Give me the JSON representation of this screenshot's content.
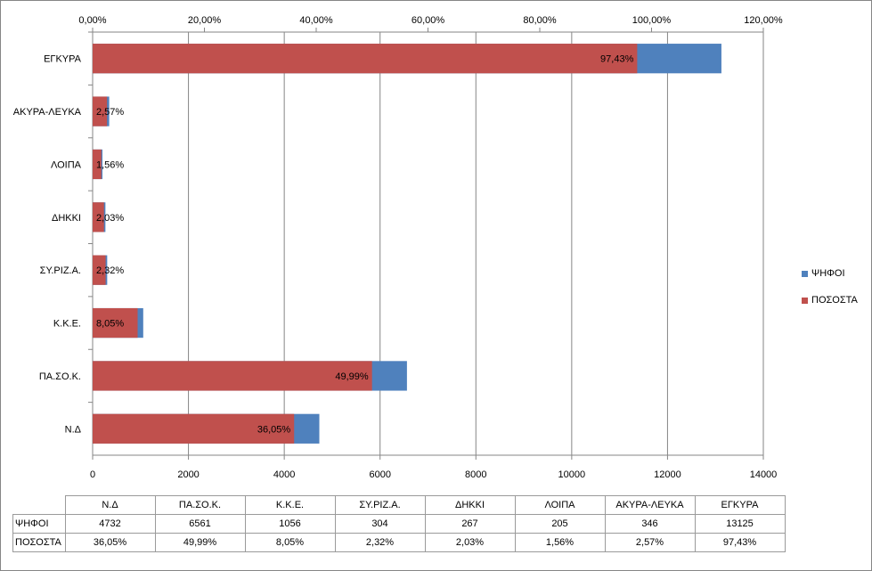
{
  "chart_data": {
    "type": "bar",
    "orientation": "horizontal",
    "stacked": true,
    "categories": [
      "Ν.Δ",
      "ΠΑ.ΣΟ.Κ.",
      "Κ.Κ.Ε.",
      "ΣΥ.ΡΙΖ.Α.",
      "ΔΗΚΚΙ",
      "ΛΟΙΠΑ",
      "ΑΚΥΡΑ-ΛΕΥΚΑ",
      "ΕΓΚΥΡΑ"
    ],
    "series": [
      {
        "name": "ΨΗΦΟΙ",
        "color": "#4F81BD",
        "axis": "bottom",
        "values": [
          4732,
          6561,
          1056,
          304,
          267,
          205,
          346,
          13125
        ],
        "value_labels": [
          "4732",
          "6561",
          "1056",
          "304",
          "267",
          "205",
          "346",
          "13125"
        ]
      },
      {
        "name": "ΠΟΣΟΣΤΑ",
        "color": "#C0504D",
        "axis": "top",
        "values": [
          36.05,
          49.99,
          8.05,
          2.32,
          2.03,
          1.56,
          2.57,
          97.43
        ],
        "value_labels": [
          "36,05%",
          "49,99%",
          "8,05%",
          "2,32%",
          "2,03%",
          "1,56%",
          "2,57%",
          "97,43%"
        ]
      }
    ],
    "bottom_axis": {
      "range": [
        0,
        14000
      ],
      "ticks": [
        "0",
        "2000",
        "4000",
        "6000",
        "8000",
        "10000",
        "12000",
        "14000"
      ]
    },
    "top_axis": {
      "range": [
        0,
        120
      ],
      "ticks": [
        "0,00%",
        "20,00%",
        "40,00%",
        "60,00%",
        "80,00%",
        "100,00%",
        "120,00%"
      ]
    },
    "grid": true,
    "legend_position": "right",
    "data_table": true
  }
}
